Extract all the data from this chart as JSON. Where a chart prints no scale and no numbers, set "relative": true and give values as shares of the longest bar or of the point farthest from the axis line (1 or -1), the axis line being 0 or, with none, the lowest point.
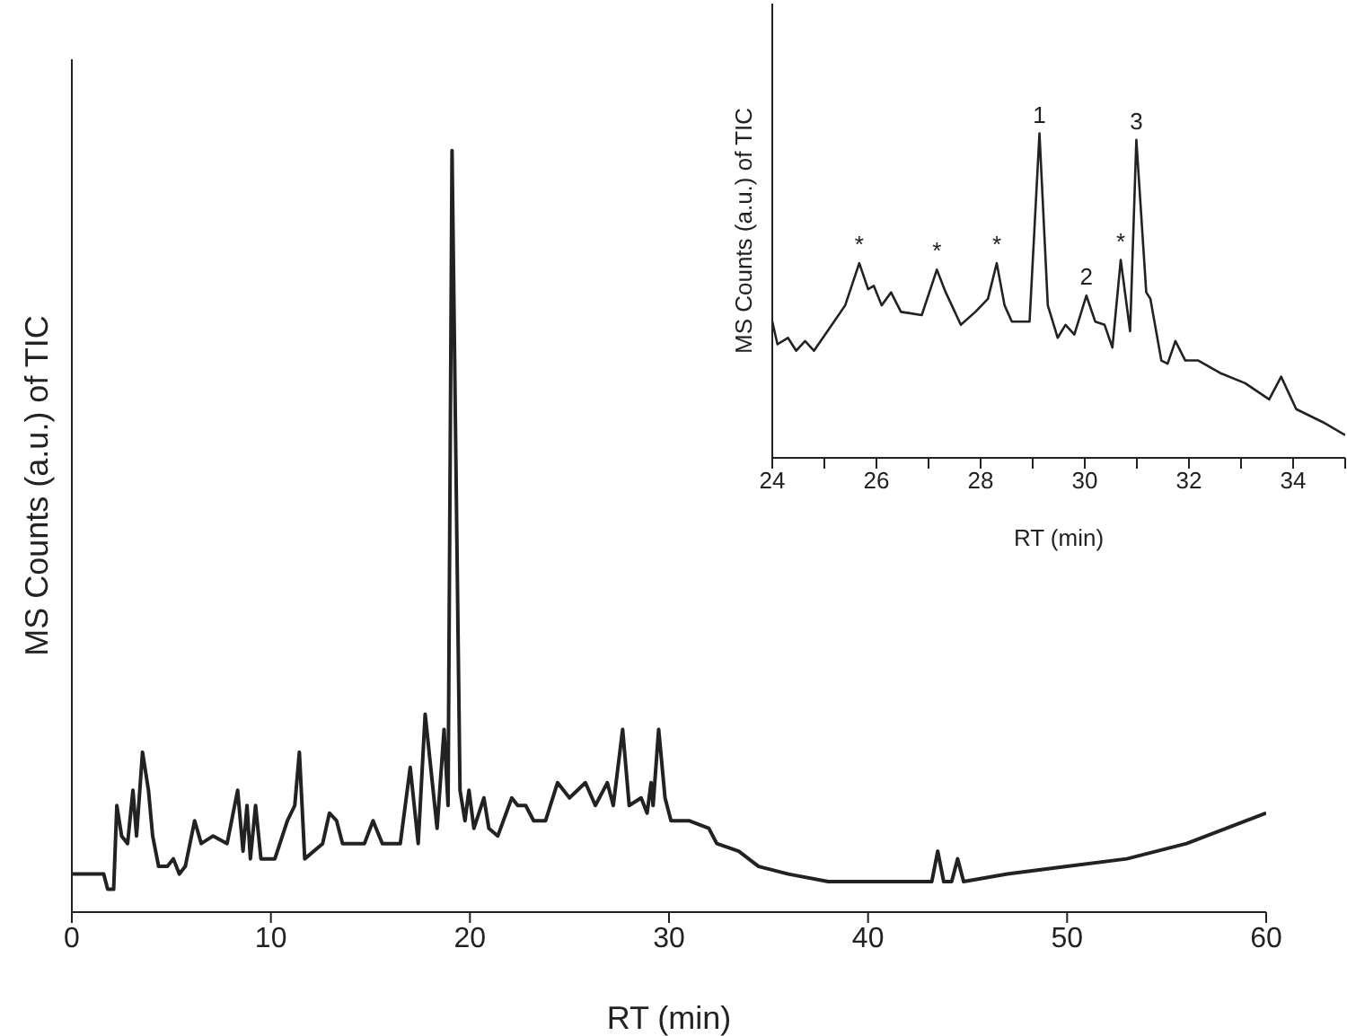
{
  "chart_data": [
    {
      "type": "line",
      "relative": true,
      "color": "#222222",
      "xlabel": "RT (min)",
      "ylabel": "MS Counts (a.u.) of TIC",
      "xlim": [
        0,
        60
      ],
      "xticks": [
        0,
        10,
        20,
        30,
        40,
        50,
        60
      ],
      "x": [
        0,
        1.6,
        1.8,
        2.1,
        2.26,
        2.5,
        2.8,
        3.07,
        3.25,
        3.55,
        3.85,
        4.06,
        4.36,
        4.8,
        5.1,
        5.4,
        5.7,
        6.17,
        6.5,
        7.1,
        7.8,
        8.33,
        8.6,
        8.8,
        8.97,
        9.23,
        9.5,
        10.2,
        10.83,
        11.2,
        11.43,
        11.7,
        12.6,
        12.94,
        13.3,
        13.6,
        14.7,
        15.13,
        15.6,
        16.5,
        17.0,
        17.4,
        17.75,
        18.35,
        18.7,
        18.9,
        19.1,
        19.5,
        19.75,
        19.95,
        20.2,
        20.7,
        20.95,
        21.4,
        22.1,
        22.4,
        22.8,
        23.2,
        23.8,
        24.4,
        25.0,
        25.8,
        26.3,
        26.9,
        27.2,
        27.67,
        28.0,
        28.6,
        28.9,
        29.1,
        29.2,
        29.48,
        29.8,
        30.1,
        31.0,
        32.0,
        32.4,
        33.5,
        34.5,
        36,
        38,
        40,
        41.5,
        43.2,
        43.5,
        43.8,
        44.2,
        44.5,
        44.8,
        47,
        50,
        53,
        56,
        58,
        60
      ],
      "values": [
        0.05,
        0.05,
        0.03,
        0.03,
        0.14,
        0.1,
        0.09,
        0.16,
        0.1,
        0.21,
        0.16,
        0.1,
        0.06,
        0.06,
        0.07,
        0.05,
        0.06,
        0.12,
        0.09,
        0.1,
        0.09,
        0.16,
        0.08,
        0.14,
        0.07,
        0.14,
        0.07,
        0.07,
        0.12,
        0.14,
        0.21,
        0.07,
        0.09,
        0.13,
        0.12,
        0.09,
        0.09,
        0.12,
        0.09,
        0.09,
        0.19,
        0.09,
        0.26,
        0.11,
        0.24,
        0.14,
        1.0,
        0.16,
        0.12,
        0.16,
        0.11,
        0.15,
        0.11,
        0.1,
        0.15,
        0.14,
        0.14,
        0.12,
        0.12,
        0.17,
        0.15,
        0.17,
        0.14,
        0.17,
        0.14,
        0.24,
        0.14,
        0.15,
        0.13,
        0.17,
        0.14,
        0.24,
        0.15,
        0.12,
        0.12,
        0.11,
        0.09,
        0.08,
        0.06,
        0.05,
        0.04,
        0.04,
        0.04,
        0.04,
        0.08,
        0.04,
        0.04,
        0.07,
        0.04,
        0.05,
        0.06,
        0.07,
        0.09,
        0.11,
        0.13
      ]
    },
    {
      "type": "line",
      "relative": true,
      "color": "#222222",
      "xlabel": "RT (min)",
      "ylabel": "MS Counts (a.u.) of TIC",
      "xlim": [
        24,
        35
      ],
      "xticks": [
        24,
        {
          "value": 25,
          "label": null
        },
        26,
        {
          "value": 27,
          "label": null
        },
        28,
        {
          "value": 29,
          "label": null
        },
        30,
        {
          "value": 31,
          "label": null
        },
        32,
        {
          "value": 33,
          "label": null
        },
        34,
        {
          "value": 35,
          "label": null
        }
      ],
      "x": [
        24.0,
        24.1,
        24.3,
        24.46,
        24.63,
        24.8,
        25.1,
        25.4,
        25.67,
        25.84,
        25.95,
        26.1,
        26.28,
        26.47,
        26.87,
        27.16,
        27.33,
        27.62,
        27.9,
        28.14,
        28.31,
        28.46,
        28.6,
        28.94,
        29.13,
        29.29,
        29.48,
        29.63,
        29.8,
        30.03,
        30.2,
        30.38,
        30.53,
        30.69,
        30.87,
        30.99,
        31.18,
        31.26,
        31.47,
        31.59,
        31.74,
        31.93,
        32.18,
        32.62,
        33.08,
        33.54,
        33.77,
        34.06,
        34.57,
        35.0
      ],
      "values": [
        0.42,
        0.35,
        0.37,
        0.33,
        0.36,
        0.33,
        0.4,
        0.47,
        0.6,
        0.52,
        0.53,
        0.47,
        0.51,
        0.45,
        0.44,
        0.58,
        0.51,
        0.41,
        0.45,
        0.49,
        0.6,
        0.47,
        0.42,
        0.42,
        1.0,
        0.47,
        0.37,
        0.41,
        0.38,
        0.5,
        0.42,
        0.41,
        0.34,
        0.61,
        0.39,
        0.98,
        0.51,
        0.49,
        0.3,
        0.29,
        0.36,
        0.3,
        0.3,
        0.26,
        0.23,
        0.18,
        0.25,
        0.15,
        0.11,
        0.07
      ],
      "annotations": [
        {
          "text": "*",
          "x": 25.67,
          "y": 0.6
        },
        {
          "text": "*",
          "x": 27.16,
          "y": 0.58
        },
        {
          "text": "*",
          "x": 28.31,
          "y": 0.6
        },
        {
          "text": "1",
          "x": 29.13,
          "y": 1.0
        },
        {
          "text": "2",
          "x": 30.03,
          "y": 0.5
        },
        {
          "text": "*",
          "x": 30.69,
          "y": 0.61
        },
        {
          "text": "3",
          "x": 30.99,
          "y": 0.98
        }
      ]
    }
  ]
}
